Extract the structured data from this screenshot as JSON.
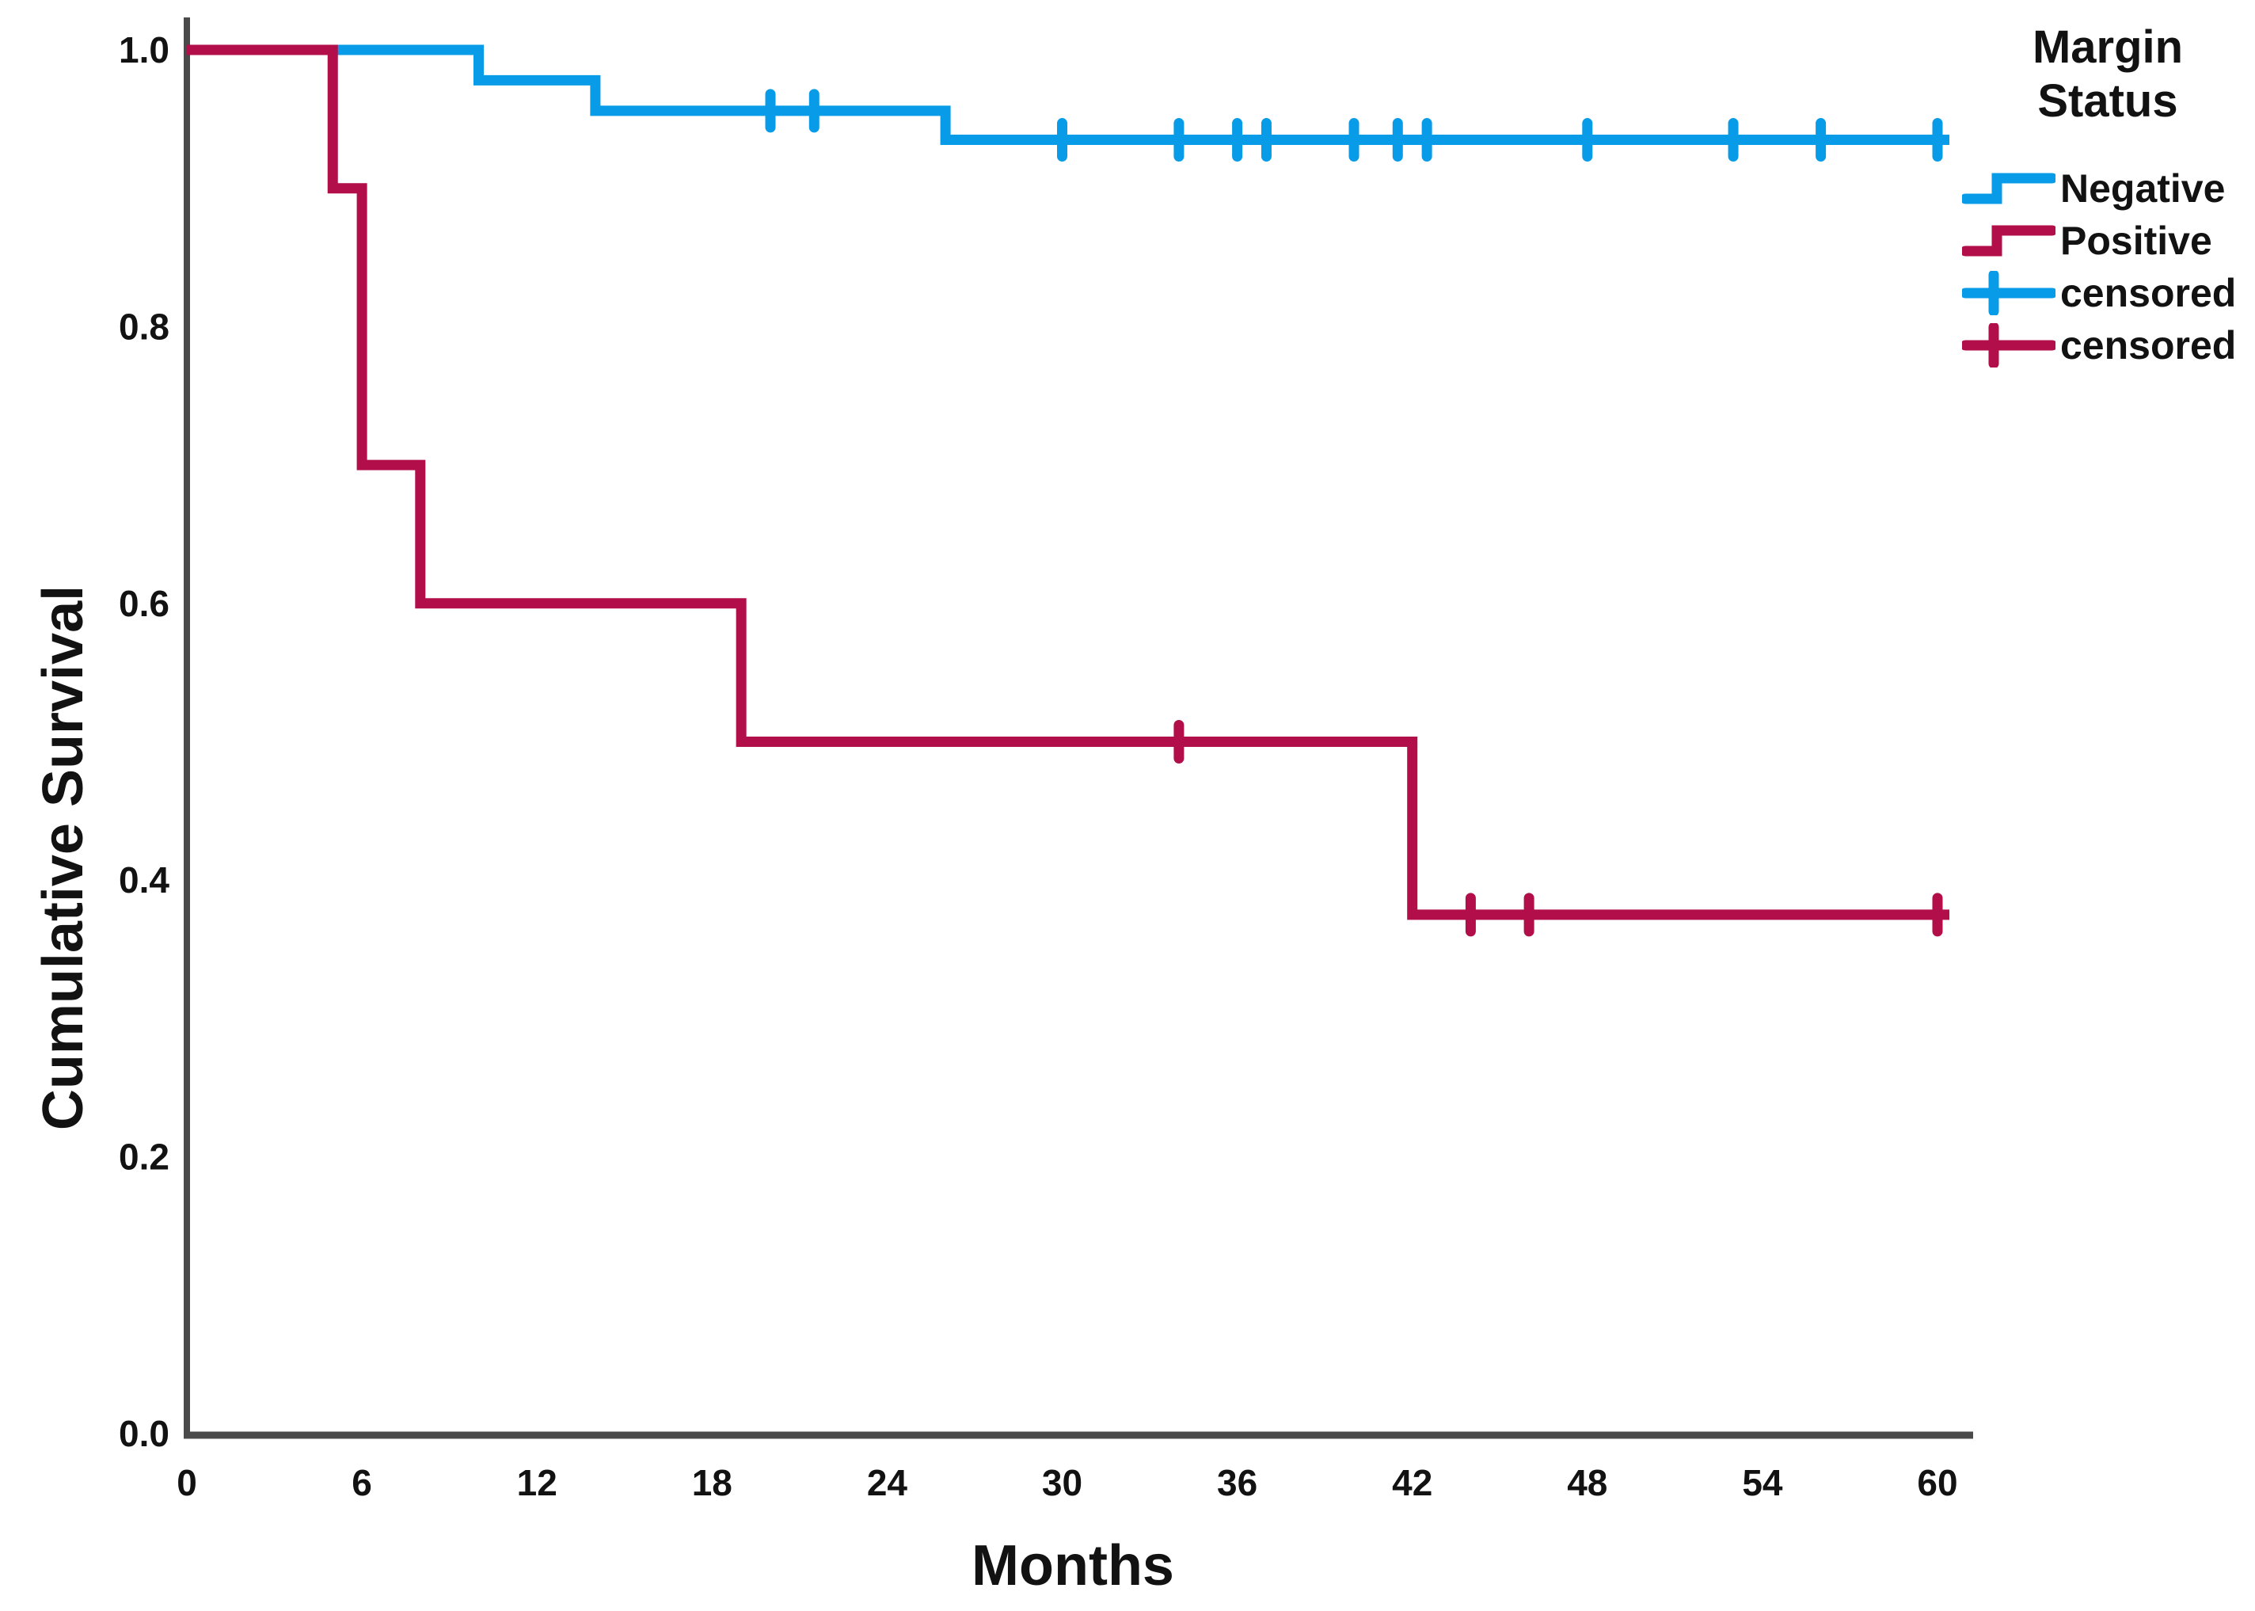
{
  "figure": {
    "y_axis_title": "Cumulative Survival",
    "x_axis_title": "Months",
    "legend": {
      "title_lines": [
        "Margin",
        "Status"
      ],
      "items": [
        {
          "label": "Negative",
          "color": "#089CE8",
          "symbol": "step"
        },
        {
          "label": "Positive",
          "color": "#B10E4A",
          "symbol": "step"
        },
        {
          "label": "censored",
          "color": "#089CE8",
          "symbol": "plus"
        },
        {
          "label": "censored",
          "color": "#B10E4A",
          "symbol": "plus"
        }
      ]
    },
    "colors": {
      "negative_line": "#089CE8",
      "positive_line": "#B10E4A",
      "axis": "#4A4A4A",
      "text": "#121212"
    }
  },
  "chart_data": {
    "type": "line",
    "subtype": "kaplan-meier-step-survival",
    "title": "",
    "xlabel": "Months",
    "ylabel": "Cumulative Survival",
    "xlim": [
      0,
      60
    ],
    "ylim": [
      0.0,
      1.0
    ],
    "x_ticks": [
      0,
      6,
      12,
      18,
      24,
      30,
      36,
      42,
      48,
      54,
      60
    ],
    "y_ticks": [
      0.0,
      0.2,
      0.4,
      0.6,
      0.8,
      1.0
    ],
    "grid": false,
    "legend_position": "top-right",
    "legend_title": "Margin Status",
    "series": [
      {
        "name": "Negative",
        "color": "#089CE8",
        "steps": [
          [
            0,
            1.0
          ],
          [
            10,
            1.0
          ],
          [
            10,
            0.978
          ],
          [
            14,
            0.978
          ],
          [
            14,
            0.956
          ],
          [
            26,
            0.956
          ],
          [
            26,
            0.935
          ],
          [
            60,
            0.935
          ]
        ],
        "censored": [
          [
            20,
            0.956
          ],
          [
            21.5,
            0.956
          ],
          [
            30,
            0.935
          ],
          [
            34,
            0.935
          ],
          [
            36,
            0.935
          ],
          [
            37,
            0.935
          ],
          [
            40,
            0.935
          ],
          [
            41.5,
            0.935
          ],
          [
            42.5,
            0.935
          ],
          [
            48,
            0.935
          ],
          [
            53,
            0.935
          ],
          [
            56,
            0.935
          ],
          [
            60,
            0.935
          ]
        ]
      },
      {
        "name": "Positive",
        "color": "#B10E4A",
        "steps": [
          [
            0,
            1.0
          ],
          [
            5,
            1.0
          ],
          [
            5,
            0.9
          ],
          [
            6,
            0.9
          ],
          [
            6,
            0.7
          ],
          [
            8,
            0.7
          ],
          [
            8,
            0.6
          ],
          [
            19,
            0.6
          ],
          [
            19,
            0.5
          ],
          [
            42,
            0.5
          ],
          [
            42,
            0.375
          ],
          [
            60,
            0.375
          ]
        ],
        "censored": [
          [
            34,
            0.5
          ],
          [
            44,
            0.375
          ],
          [
            46,
            0.375
          ],
          [
            60,
            0.375
          ]
        ]
      }
    ]
  }
}
